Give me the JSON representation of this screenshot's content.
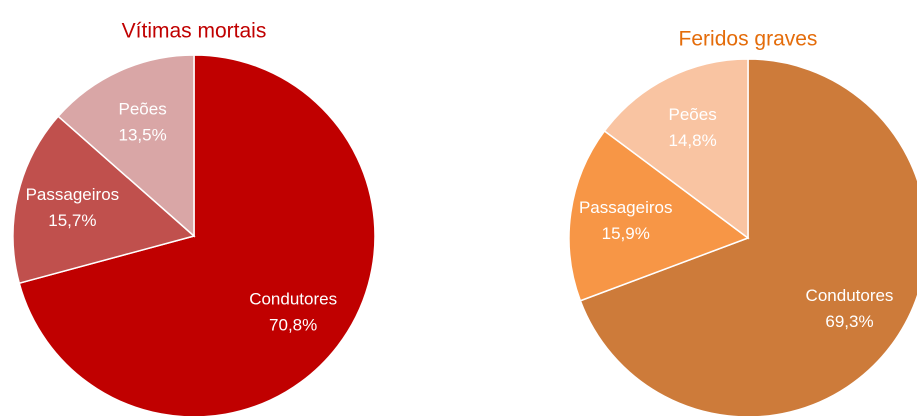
{
  "chart_data": [
    {
      "type": "pie",
      "title": "Vítimas mortais",
      "title_color": "#c00000",
      "categories": [
        "Condutores",
        "Passageiros",
        "Peões"
      ],
      "values": [
        70.8,
        15.7,
        13.5
      ],
      "value_labels": [
        "70,8%",
        "15,7%",
        "13,5%"
      ],
      "colors": [
        "#c00000",
        "#c0504d",
        "#d9a6a6"
      ]
    },
    {
      "type": "pie",
      "title": "Feridos graves",
      "title_color": "#e46c0a",
      "categories": [
        "Condutores",
        "Passageiros",
        "Peões"
      ],
      "values": [
        69.3,
        15.9,
        14.8
      ],
      "value_labels": [
        "69,3%",
        "15,9%",
        "14,8%"
      ],
      "colors": [
        "#cd7b3a",
        "#f79646",
        "#f9c4a2"
      ]
    }
  ]
}
